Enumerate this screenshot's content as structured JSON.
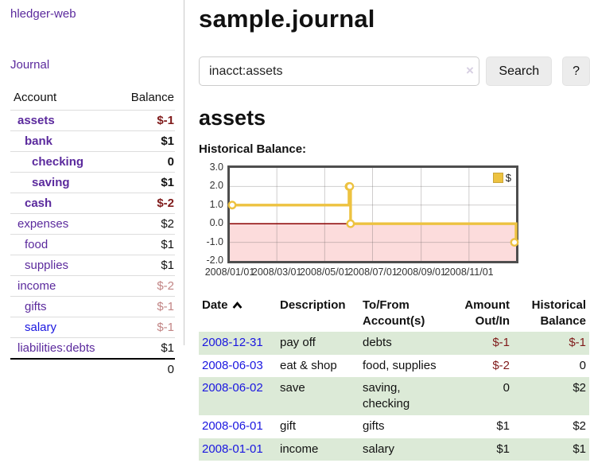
{
  "colors": {
    "link_purple": "#5b2a9d",
    "link_blue": "#1a16e0",
    "negative": "#7f1a1a",
    "negative_muted": "#c28585",
    "row_green": "#dcead7",
    "series_yellow": "#EDC240",
    "negative_region_pink": "#fcdcdc",
    "zero_line_red": "#8b0000"
  },
  "sidebar": {
    "app_title": "hledger-web",
    "journal_link": "Journal",
    "accounts_table": {
      "headers": {
        "account": "Account",
        "balance": "Balance"
      },
      "rows": [
        {
          "name": "assets",
          "depth": 1,
          "balance": "$-1",
          "bold": true,
          "balance_color": "negative"
        },
        {
          "name": "bank",
          "depth": 2,
          "balance": "$1",
          "bold": true,
          "balance_color": "normal"
        },
        {
          "name": "checking",
          "depth": 3,
          "balance": "0",
          "bold": true,
          "balance_color": "normal"
        },
        {
          "name": "saving",
          "depth": 3,
          "balance": "$1",
          "bold": true,
          "balance_color": "normal"
        },
        {
          "name": "cash",
          "depth": 2,
          "balance": "$-2",
          "bold": true,
          "balance_color": "negative"
        },
        {
          "name": "expenses",
          "depth": 1,
          "balance": "$2",
          "bold": false,
          "balance_color": "normal"
        },
        {
          "name": "food",
          "depth": 2,
          "balance": "$1",
          "bold": false,
          "balance_color": "normal"
        },
        {
          "name": "supplies",
          "depth": 2,
          "balance": "$1",
          "bold": false,
          "balance_color": "normal"
        },
        {
          "name": "income",
          "depth": 1,
          "balance": "$-2",
          "bold": false,
          "balance_color": "negative-muted"
        },
        {
          "name": "gifts",
          "depth": 2,
          "balance": "$-1",
          "bold": false,
          "balance_color": "negative-muted"
        },
        {
          "name": "salary",
          "depth": 2,
          "balance": "$-1",
          "bold": false,
          "balance_color": "negative-muted",
          "link_color": "blue"
        },
        {
          "name": "liabilities:debts",
          "depth": 1,
          "balance": "$1",
          "bold": false,
          "balance_color": "normal"
        }
      ],
      "total": "0"
    }
  },
  "header": {
    "title": "sample.journal"
  },
  "search": {
    "value": "inacct:assets",
    "clear_label": "×",
    "button_label": "Search",
    "help_label": "?"
  },
  "account_page": {
    "title": "assets",
    "chart_label": "Historical Balance:"
  },
  "chart_data": {
    "type": "line",
    "style": "step-with-markers",
    "title": "Historical Balance:",
    "series": [
      {
        "name": "$",
        "color": "#EDC240",
        "points": [
          {
            "date": "2008-01-01",
            "value": 1
          },
          {
            "date": "2008-06-01",
            "value": 2
          },
          {
            "date": "2008-06-02",
            "value": 2
          },
          {
            "date": "2008-06-03",
            "value": 0
          },
          {
            "date": "2008-12-31",
            "value": -1
          }
        ]
      }
    ],
    "x_ticks": [
      "2008/01/01",
      "2008/03/01",
      "2008/05/01",
      "2008/07/01",
      "2008/09/01",
      "2008/11/01"
    ],
    "y_ticks": [
      "3.0",
      "2.0",
      "1.0",
      "0.0",
      "-1.0",
      "-2.0"
    ],
    "ylim": [
      -2,
      3
    ],
    "x_range_days": 365,
    "grid": true,
    "legend_position": "top-right",
    "negative_fill": "#fcdcdc",
    "zero_line": "#8b0000"
  },
  "register_table": {
    "headers": {
      "date": "Date",
      "description": "Description",
      "accounts": "To/From Account(s)",
      "amount": "Amount Out/In",
      "balance": "Historical Balance"
    },
    "sort": {
      "column": "date",
      "direction": "ascending"
    },
    "rows": [
      {
        "date": "2008-12-31",
        "description": "pay off",
        "accounts": "debts",
        "amount": "$-1",
        "amount_neg": true,
        "balance": "$-1",
        "balance_neg": true
      },
      {
        "date": "2008-06-03",
        "description": "eat & shop",
        "accounts": "food, supplies",
        "amount": "$-2",
        "amount_neg": true,
        "balance": "0",
        "balance_neg": false
      },
      {
        "date": "2008-06-02",
        "description": "save",
        "accounts": "saving, checking",
        "amount": "0",
        "amount_neg": false,
        "balance": "$2",
        "balance_neg": false
      },
      {
        "date": "2008-06-01",
        "description": "gift",
        "accounts": "gifts",
        "amount": "$1",
        "amount_neg": false,
        "balance": "$2",
        "balance_neg": false
      },
      {
        "date": "2008-01-01",
        "description": "income",
        "accounts": "salary",
        "amount": "$1",
        "amount_neg": false,
        "balance": "$1",
        "balance_neg": false
      }
    ]
  }
}
